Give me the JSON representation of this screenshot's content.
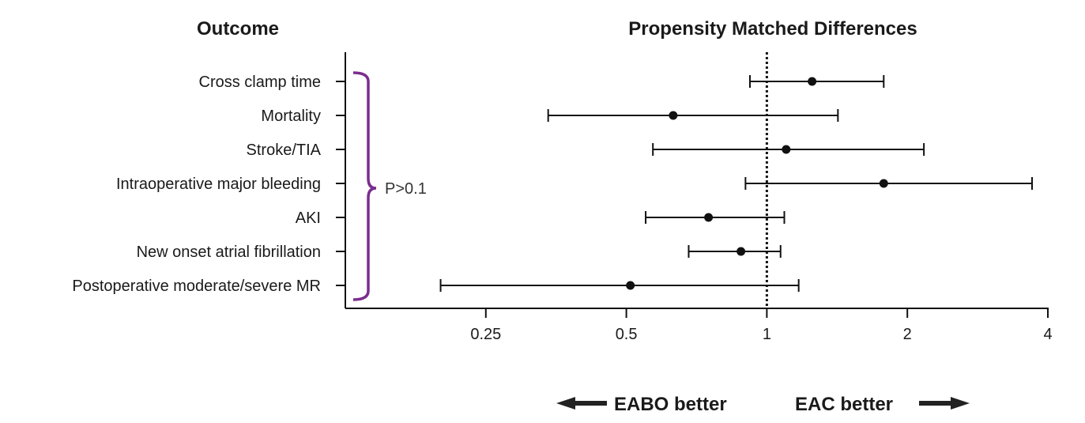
{
  "headers": {
    "outcome": "Outcome",
    "differences": "Propensity Matched Differences"
  },
  "bracket_label": "P>0.1",
  "direction": {
    "left": "EABO better",
    "right": "EAC better"
  },
  "colors": {
    "bracket": "#7b2d8e",
    "ink": "#111111"
  },
  "chart_data": {
    "type": "forest",
    "x_scale": "log2",
    "xlim": [
      0.125,
      4
    ],
    "x_ticks": [
      0.25,
      0.5,
      1,
      2,
      4
    ],
    "x_tick_labels": [
      "0.25",
      "0.5",
      "1",
      "2",
      "4"
    ],
    "reference_line": 1,
    "rows": [
      {
        "label": "Cross clamp time",
        "estimate": 1.25,
        "lower": 0.92,
        "upper": 1.78
      },
      {
        "label": "Mortality",
        "estimate": 0.63,
        "lower": 0.34,
        "upper": 1.42
      },
      {
        "label": "Stroke/TIA",
        "estimate": 1.1,
        "lower": 0.57,
        "upper": 2.17
      },
      {
        "label": "Intraoperative major bleeding",
        "estimate": 1.78,
        "lower": 0.9,
        "upper": 3.7
      },
      {
        "label": "AKI",
        "estimate": 0.75,
        "lower": 0.55,
        "upper": 1.09
      },
      {
        "label": "New onset atrial fibrillation",
        "estimate": 0.88,
        "lower": 0.68,
        "upper": 1.07
      },
      {
        "label": "Postoperative moderate/severe MR",
        "estimate": 0.51,
        "lower": 0.2,
        "upper": 1.17
      }
    ]
  }
}
